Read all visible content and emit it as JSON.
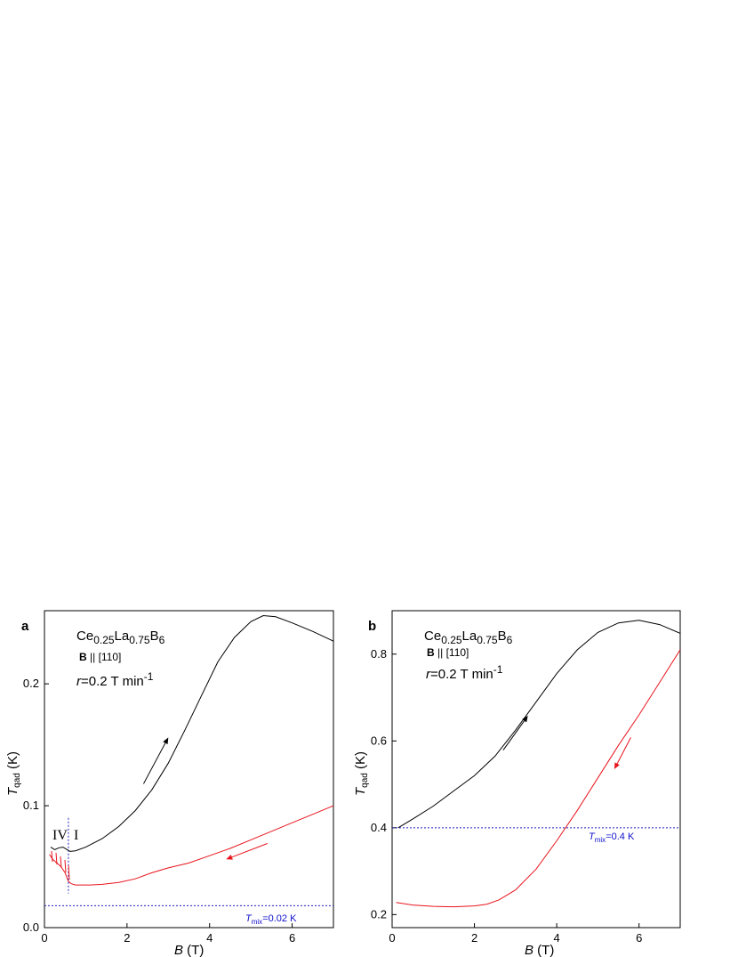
{
  "colors": {
    "up": "#000000",
    "down": "#e8141c",
    "ref": "#2020c0",
    "tmix_text": "#1010cc"
  },
  "chart_data": [
    {
      "type": "line",
      "panel": "a",
      "compound": {
        "base1": "Ce",
        "sub1": "0.25",
        "base2": "La",
        "sub2": "0.75",
        "base3": "B",
        "sub3": "6"
      },
      "field_dir": {
        "bold": "B",
        "rest": " || [110]"
      },
      "rate": {
        "var": "r",
        "rest": "=0.2 T min",
        "exp": "-1"
      },
      "xlabel": {
        "var": "B",
        "rest": " (T)"
      },
      "ylabel": {
        "var": "T",
        "sub": "qad",
        "rest": " (K)"
      },
      "xlim": [
        0,
        7
      ],
      "ylim": [
        0,
        0.26
      ],
      "xticks": [
        0,
        2,
        4,
        6
      ],
      "xtick_labels": [
        "0",
        "2",
        "4",
        "6"
      ],
      "yticks": [
        0,
        0.1,
        0.2
      ],
      "ytick_labels": [
        "0.0",
        "0.1",
        "0.2"
      ],
      "phase_labels": {
        "left": "IV",
        "right": "I"
      },
      "phase_boundary_x": 0.58,
      "reference": {
        "y": 0.018,
        "label_var": "T",
        "label_sub": "mix",
        "label_rest": "=0.02 K"
      },
      "series": [
        {
          "direction": "up",
          "x": [
            0.15,
            0.25,
            0.35,
            0.45,
            0.55,
            0.62,
            0.75,
            1.0,
            1.4,
            1.8,
            2.2,
            2.6,
            3.0,
            3.4,
            3.8,
            4.2,
            4.6,
            5.0,
            5.3,
            5.6,
            6.0,
            6.5,
            7.0
          ],
          "y": [
            0.066,
            0.064,
            0.0655,
            0.066,
            0.064,
            0.0625,
            0.063,
            0.066,
            0.073,
            0.083,
            0.096,
            0.113,
            0.135,
            0.162,
            0.19,
            0.218,
            0.238,
            0.251,
            0.256,
            0.255,
            0.25,
            0.243,
            0.235
          ]
        },
        {
          "direction": "down",
          "x": [
            7.0,
            6.5,
            6.0,
            5.5,
            5.0,
            4.5,
            4.0,
            3.5,
            3.0,
            2.6,
            2.2,
            1.8,
            1.4,
            1.1,
            0.9,
            0.75,
            0.65,
            0.58,
            0.5,
            0.4,
            0.3,
            0.2,
            0.12
          ],
          "y": [
            0.1,
            0.093,
            0.086,
            0.079,
            0.072,
            0.065,
            0.059,
            0.053,
            0.049,
            0.045,
            0.04,
            0.037,
            0.0355,
            0.035,
            0.035,
            0.035,
            0.036,
            0.038,
            0.045,
            0.05,
            0.053,
            0.056,
            0.06
          ]
        }
      ],
      "arrows": [
        {
          "direction": "up",
          "from": [
            2.4,
            0.118
          ],
          "to": [
            3.0,
            0.156
          ]
        },
        {
          "direction": "down",
          "from": [
            5.4,
            0.069
          ],
          "to": [
            4.4,
            0.056
          ]
        }
      ]
    },
    {
      "type": "line",
      "panel": "b",
      "compound": {
        "base1": "Ce",
        "sub1": "0.25",
        "base2": "La",
        "sub2": "0.75",
        "base3": "B",
        "sub3": "6"
      },
      "field_dir": {
        "bold": "B",
        "rest": " || [110]"
      },
      "rate": {
        "var": "r",
        "rest": "=0.2 T min",
        "exp": "-1"
      },
      "xlabel": {
        "var": "B",
        "rest": " (T)"
      },
      "ylabel": {
        "var": "T",
        "sub": "qad",
        "rest": " (K)"
      },
      "xlim": [
        0,
        7
      ],
      "ylim": [
        0.17,
        0.9
      ],
      "xticks": [
        0,
        2,
        4,
        6
      ],
      "xtick_labels": [
        "0",
        "2",
        "4",
        "6"
      ],
      "yticks": [
        0.2,
        0.4,
        0.6,
        0.8
      ],
      "ytick_labels": [
        "0.2",
        "0.4",
        "0.6",
        "0.8"
      ],
      "reference": {
        "y": 0.4,
        "label_var": "T",
        "label_sub": "mix",
        "label_rest": "=0.4 K"
      },
      "series": [
        {
          "direction": "up",
          "x": [
            0.15,
            0.5,
            1.0,
            1.5,
            2.0,
            2.5,
            3.0,
            3.5,
            4.0,
            4.5,
            5.0,
            5.5,
            6.0,
            6.5,
            7.0
          ],
          "y": [
            0.4,
            0.42,
            0.45,
            0.485,
            0.52,
            0.565,
            0.625,
            0.69,
            0.755,
            0.81,
            0.85,
            0.872,
            0.878,
            0.868,
            0.848
          ]
        },
        {
          "direction": "down",
          "x": [
            7.0,
            6.5,
            6.0,
            5.5,
            5.0,
            4.5,
            4.0,
            3.5,
            3.0,
            2.6,
            2.3,
            2.0,
            1.5,
            1.0,
            0.5,
            0.1
          ],
          "y": [
            0.81,
            0.735,
            0.66,
            0.59,
            0.515,
            0.44,
            0.37,
            0.305,
            0.257,
            0.234,
            0.224,
            0.22,
            0.218,
            0.219,
            0.222,
            0.228
          ]
        }
      ],
      "arrows": [
        {
          "direction": "up",
          "from": [
            2.7,
            0.579
          ],
          "to": [
            3.3,
            0.658
          ]
        },
        {
          "direction": "down",
          "from": [
            5.8,
            0.608
          ],
          "to": [
            5.4,
            0.535
          ]
        }
      ]
    }
  ]
}
